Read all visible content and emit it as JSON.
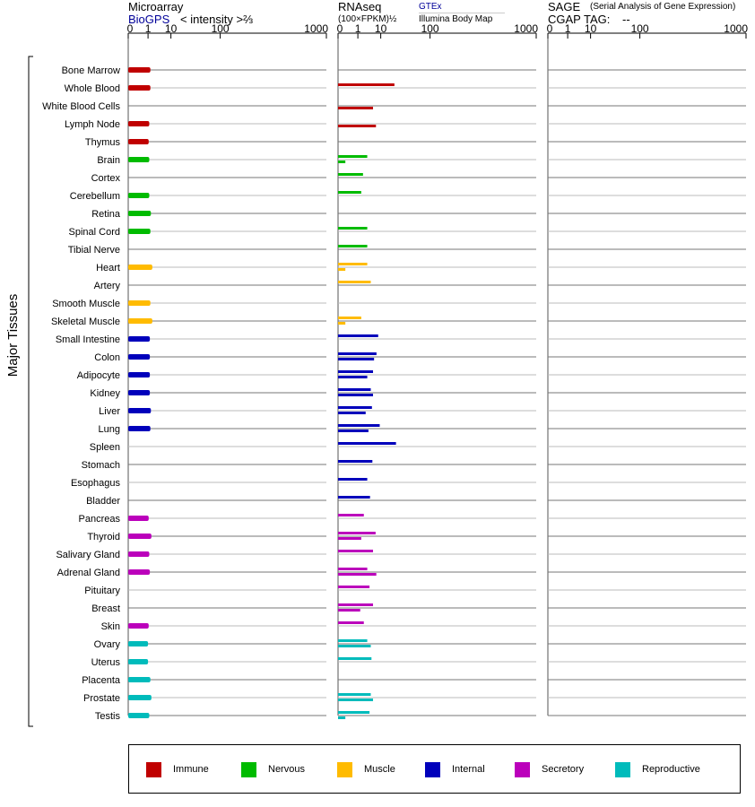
{
  "headers": {
    "microarray": {
      "title": "Microarray",
      "link": "BioGPS",
      "unit": "< intensity >⅔"
    },
    "rnaseq": {
      "title": "RNAseq",
      "unit": "(100×FPKM)½",
      "link": "GTEx",
      "sub": "Illumina Body Map"
    },
    "sage": {
      "title": "SAGE",
      "title_note": "(Serial Analysis of Gene Expression)",
      "cgap": "CGAP TAG:",
      "cgap_value": "--"
    }
  },
  "y_axis_label": "Major Tissues",
  "legend": [
    {
      "label": "Immune",
      "color": "#c00000"
    },
    {
      "label": "Nervous",
      "color": "#00bb00"
    },
    {
      "label": "Muscle",
      "color": "#ffbb00"
    },
    {
      "label": "Internal",
      "color": "#0000bb"
    },
    {
      "label": "Secretory",
      "color": "#bb00bb"
    },
    {
      "label": "Reproductive",
      "color": "#00bbbb"
    }
  ],
  "chart_data": {
    "type": "bar",
    "orientation": "horizontal",
    "x_scale": "power",
    "xlim": [
      0,
      1000
    ],
    "x_ticks": [
      "0",
      "1",
      "10",
      "100",
      "1000"
    ],
    "categories": [
      "Bone Marrow",
      "Whole Blood",
      "White Blood Cells",
      "Lymph Node",
      "Thymus",
      "Brain",
      "Cortex",
      "Cerebellum",
      "Retina",
      "Spinal Cord",
      "Tibial Nerve",
      "Heart",
      "Artery",
      "Smooth Muscle",
      "Skeletal Muscle",
      "Small Intestine",
      "Colon",
      "Adipocyte",
      "Kidney",
      "Liver",
      "Lung",
      "Spleen",
      "Stomach",
      "Esophagus",
      "Bladder",
      "Pancreas",
      "Thyroid",
      "Salivary Gland",
      "Adrenal Gland",
      "Pituitary",
      "Breast",
      "Skin",
      "Ovary",
      "Uterus",
      "Placenta",
      "Prostate",
      "Testis"
    ],
    "groups": [
      "Immune",
      "Immune",
      "Immune",
      "Immune",
      "Immune",
      "Nervous",
      "Nervous",
      "Nervous",
      "Nervous",
      "Nervous",
      "Nervous",
      "Muscle",
      "Muscle",
      "Muscle",
      "Muscle",
      "Internal",
      "Internal",
      "Internal",
      "Internal",
      "Internal",
      "Internal",
      "Internal",
      "Internal",
      "Internal",
      "Internal",
      "Secretory",
      "Secretory",
      "Secretory",
      "Secretory",
      "Secretory",
      "Secretory",
      "Secretory",
      "Reproductive",
      "Reproductive",
      "Reproductive",
      "Reproductive",
      "Reproductive"
    ],
    "panels": [
      {
        "name": "Microarray",
        "values": [
          1.4,
          1.4,
          null,
          1.2,
          1.1,
          1.2,
          null,
          1.2,
          1.5,
          1.4,
          null,
          1.8,
          null,
          1.4,
          1.8,
          1.3,
          1.3,
          1.3,
          1.3,
          1.5,
          1.4,
          null,
          null,
          null,
          null,
          1.1,
          1.6,
          1.2,
          1.3,
          null,
          null,
          1.1,
          1.0,
          1.0,
          1.4,
          1.6,
          1.2
        ]
      },
      {
        "name": "RNAseq GTEx",
        "values": [
          null,
          23,
          null,
          null,
          null,
          3.2,
          2.0,
          1.6,
          null,
          3.2,
          3.2,
          3.2,
          4.5,
          null,
          1.6,
          8.3,
          7.3,
          5.5,
          4.5,
          5.0,
          9.3,
          25,
          5.2,
          3.2,
          4.2,
          2.2,
          6.8,
          5.5,
          3.2,
          4.0,
          5.5,
          2.2,
          3.2,
          4.8,
          null,
          4.5,
          4.0
        ]
      },
      {
        "name": "RNAseq Illumina Body Map",
        "values": [
          null,
          null,
          5.5,
          7.0,
          null,
          0.05,
          null,
          null,
          null,
          null,
          null,
          0.05,
          null,
          null,
          0.05,
          null,
          6.0,
          3.2,
          5.5,
          2.7,
          3.6,
          null,
          null,
          null,
          null,
          null,
          1.6,
          null,
          7.2,
          null,
          1.4,
          null,
          4.5,
          null,
          null,
          5.5,
          0.05
        ]
      },
      {
        "name": "SAGE",
        "values": []
      }
    ]
  }
}
